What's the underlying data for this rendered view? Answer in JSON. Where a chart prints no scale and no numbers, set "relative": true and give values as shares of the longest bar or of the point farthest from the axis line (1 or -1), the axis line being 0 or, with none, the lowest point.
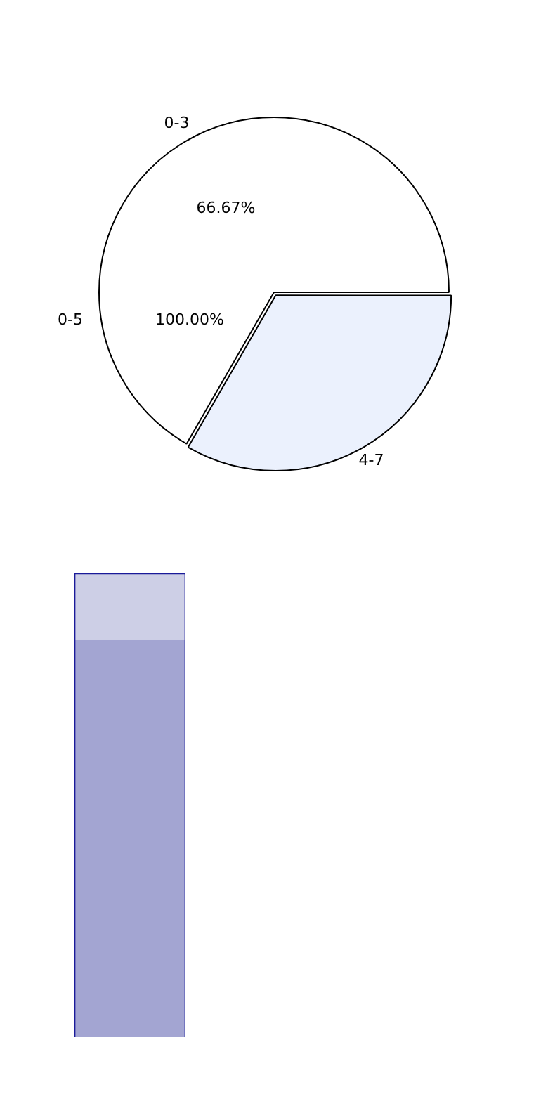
{
  "chart_data": [
    {
      "type": "pie",
      "categories": [
        "0-3",
        "4-7"
      ],
      "values": [
        66.67,
        33.33
      ],
      "colors": [
        "#ffffff",
        "#ebf1fd"
      ],
      "value_labels": [
        "66.67%",
        null
      ],
      "annotations": [
        "0-5",
        "100.00%"
      ],
      "legend": false
    },
    {
      "type": "bar",
      "stacked": true,
      "relative": true,
      "categories": [
        null
      ],
      "series": [
        {
          "color": "#a3a5d2",
          "values": [
            0.856
          ]
        },
        {
          "color": "#cdcfe6",
          "values": [
            0.144
          ]
        }
      ],
      "legend": false
    }
  ]
}
